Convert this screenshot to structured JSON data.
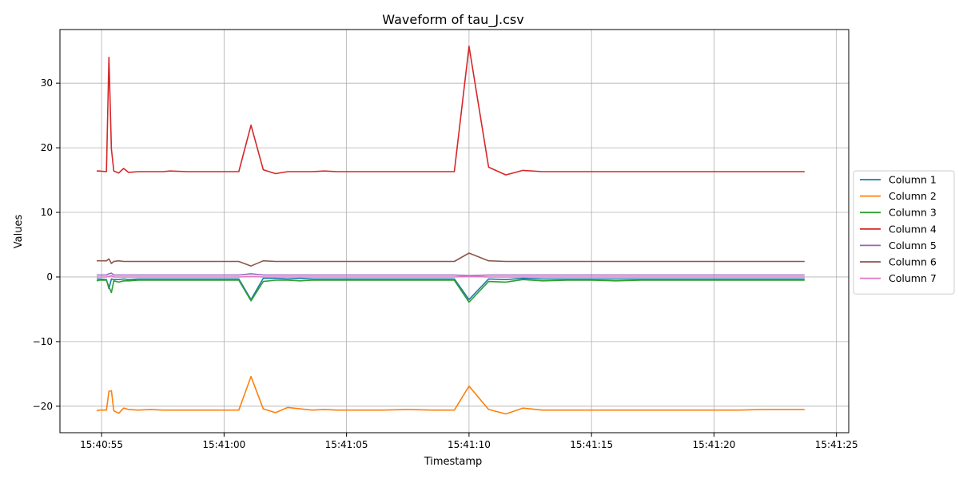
{
  "chart_data": {
    "type": "line",
    "title": "Waveform of tau_J.csv",
    "xlabel": "Timestamp",
    "ylabel": "Values",
    "xlim": [
      "15:40:53.3",
      "15:41:25.5"
    ],
    "ylim": [
      -24.1,
      38.3
    ],
    "xticks": [
      "15:40:55",
      "15:41:00",
      "15:41:05",
      "15:41:10",
      "15:41:15",
      "15:41:20",
      "15:41:25"
    ],
    "yticks": [
      -20,
      -10,
      0,
      10,
      20,
      30
    ],
    "grid": true,
    "legend_position": "right",
    "x": [
      "15:40:54.8",
      "15:40:54.9",
      "15:40:55.2",
      "15:40:55.3",
      "15:40:55.4",
      "15:40:55.5",
      "15:40:55.7",
      "15:40:55.9",
      "15:40:56.1",
      "15:40:56.5",
      "15:40:57.0",
      "15:40:57.5",
      "15:40:57.8",
      "15:40:58.5",
      "15:40:59.0",
      "15:40:59.5",
      "15:41:00.0",
      "15:41:00.6",
      "15:41:01.1",
      "15:41:01.6",
      "15:41:02.1",
      "15:41:02.6",
      "15:41:03.1",
      "15:41:03.6",
      "15:41:04.1",
      "15:41:04.6",
      "15:41:05.5",
      "15:41:06.5",
      "15:41:07.5",
      "15:41:08.5",
      "15:41:09.4",
      "15:41:10.0",
      "15:41:10.8",
      "15:41:11.5",
      "15:41:12.2",
      "15:41:13.0",
      "15:41:14.0",
      "15:41:15.0",
      "15:41:16.0",
      "15:41:17.0",
      "15:41:18.0",
      "15:41:19.0",
      "15:41:20.0",
      "15:41:21.0",
      "15:41:22.0",
      "15:41:23.0",
      "15:41:23.7"
    ],
    "series": [
      {
        "name": "Column 1",
        "color": "#1f77b4",
        "values": [
          -0.3,
          -0.3,
          -0.4,
          -1.8,
          -0.3,
          -0.4,
          -0.4,
          -0.3,
          -0.4,
          -0.3,
          -0.3,
          -0.3,
          -0.3,
          -0.3,
          -0.3,
          -0.3,
          -0.3,
          -0.3,
          -3.5,
          -0.2,
          -0.2,
          -0.3,
          -0.2,
          -0.3,
          -0.3,
          -0.3,
          -0.3,
          -0.3,
          -0.3,
          -0.3,
          -0.3,
          -3.5,
          -0.3,
          -0.4,
          -0.2,
          -0.3,
          -0.3,
          -0.3,
          -0.3,
          -0.3,
          -0.3,
          -0.3,
          -0.3,
          -0.3,
          -0.3,
          -0.3,
          -0.3
        ]
      },
      {
        "name": "Column 2",
        "color": "#ff7f0e",
        "values": [
          -20.7,
          -20.6,
          -20.6,
          -17.7,
          -17.6,
          -20.7,
          -21.1,
          -20.3,
          -20.5,
          -20.6,
          -20.5,
          -20.6,
          -20.6,
          -20.6,
          -20.6,
          -20.6,
          -20.6,
          -20.6,
          -15.4,
          -20.4,
          -21.0,
          -20.2,
          -20.4,
          -20.6,
          -20.5,
          -20.6,
          -20.6,
          -20.6,
          -20.5,
          -20.6,
          -20.6,
          -16.9,
          -20.5,
          -21.2,
          -20.3,
          -20.6,
          -20.6,
          -20.6,
          -20.6,
          -20.6,
          -20.6,
          -20.6,
          -20.6,
          -20.6,
          -20.5,
          -20.5,
          -20.5
        ]
      },
      {
        "name": "Column 3",
        "color": "#2ca02c",
        "values": [
          -0.6,
          -0.5,
          -0.5,
          -1.5,
          -2.4,
          -0.6,
          -0.8,
          -0.6,
          -0.6,
          -0.5,
          -0.5,
          -0.5,
          -0.5,
          -0.5,
          -0.5,
          -0.5,
          -0.5,
          -0.5,
          -3.7,
          -0.7,
          -0.5,
          -0.5,
          -0.6,
          -0.5,
          -0.5,
          -0.5,
          -0.5,
          -0.5,
          -0.5,
          -0.5,
          -0.5,
          -3.9,
          -0.7,
          -0.8,
          -0.4,
          -0.6,
          -0.5,
          -0.5,
          -0.6,
          -0.5,
          -0.5,
          -0.5,
          -0.5,
          -0.5,
          -0.5,
          -0.5,
          -0.5
        ]
      },
      {
        "name": "Column 4",
        "color": "#d62728",
        "values": [
          16.4,
          16.4,
          16.3,
          34.0,
          19.8,
          16.4,
          16.1,
          16.8,
          16.2,
          16.3,
          16.3,
          16.3,
          16.4,
          16.3,
          16.3,
          16.3,
          16.3,
          16.3,
          23.5,
          16.6,
          16.0,
          16.3,
          16.3,
          16.3,
          16.4,
          16.3,
          16.3,
          16.3,
          16.3,
          16.3,
          16.3,
          35.7,
          17.0,
          15.8,
          16.5,
          16.3,
          16.3,
          16.3,
          16.3,
          16.3,
          16.3,
          16.3,
          16.3,
          16.3,
          16.3,
          16.3,
          16.3
        ]
      },
      {
        "name": "Column 5",
        "color": "#9467bd",
        "values": [
          0.3,
          0.3,
          0.3,
          0.5,
          0.6,
          0.3,
          0.3,
          0.3,
          0.3,
          0.3,
          0.3,
          0.3,
          0.3,
          0.3,
          0.3,
          0.3,
          0.3,
          0.3,
          0.5,
          0.3,
          0.3,
          0.3,
          0.3,
          0.3,
          0.3,
          0.3,
          0.3,
          0.3,
          0.3,
          0.3,
          0.3,
          0.2,
          0.3,
          0.3,
          0.3,
          0.3,
          0.3,
          0.3,
          0.3,
          0.3,
          0.3,
          0.3,
          0.3,
          0.3,
          0.3,
          0.3,
          0.3
        ]
      },
      {
        "name": "Column 6",
        "color": "#8c564b",
        "values": [
          2.5,
          2.5,
          2.5,
          2.8,
          2.1,
          2.4,
          2.5,
          2.4,
          2.4,
          2.4,
          2.4,
          2.4,
          2.4,
          2.4,
          2.4,
          2.4,
          2.4,
          2.4,
          1.7,
          2.5,
          2.4,
          2.4,
          2.4,
          2.4,
          2.4,
          2.4,
          2.4,
          2.4,
          2.4,
          2.4,
          2.4,
          3.7,
          2.5,
          2.4,
          2.4,
          2.4,
          2.4,
          2.4,
          2.4,
          2.4,
          2.4,
          2.4,
          2.4,
          2.4,
          2.4,
          2.4,
          2.4
        ]
      },
      {
        "name": "Column 7",
        "color": "#e377c2",
        "values": [
          0.0,
          0.0,
          0.0,
          0.1,
          0.2,
          0.0,
          0.0,
          0.0,
          0.0,
          0.0,
          0.0,
          0.0,
          0.0,
          0.0,
          0.0,
          0.0,
          0.0,
          0.0,
          0.1,
          0.0,
          0.0,
          0.0,
          0.0,
          0.0,
          0.0,
          0.0,
          0.0,
          0.0,
          0.0,
          0.0,
          0.0,
          0.1,
          0.0,
          0.0,
          0.0,
          0.0,
          0.0,
          0.0,
          0.0,
          0.0,
          0.0,
          0.0,
          0.0,
          0.0,
          0.0,
          0.0,
          0.0
        ]
      }
    ]
  }
}
